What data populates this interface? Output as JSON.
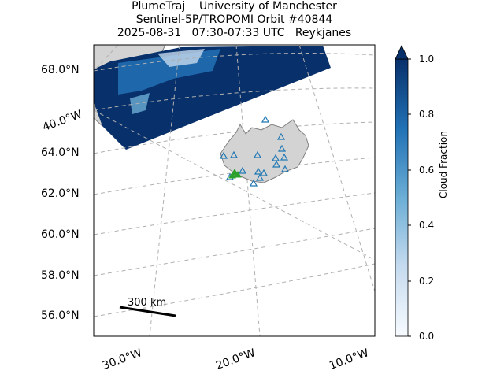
{
  "title": {
    "line1": "PlumeTraj    University of Manchester",
    "line2": "Sentinel-5P/TROPOMI Orbit #40844",
    "line3": "2025-08-31   07:30-07:33 UTC   Reykjanes"
  },
  "map": {
    "lat_labels": [
      "68.0°N",
      "64.0°N",
      "62.0°N",
      "60.0°N",
      "58.0°N",
      "56.0°N"
    ],
    "lon_labels": [
      "40.0°W",
      "30.0°W",
      "20.0°W",
      "10.0°W"
    ],
    "scale_bar_label": "300 km",
    "land_color": "#d3d3d3",
    "coast_color": "#808080",
    "gridline_color": "#b0b0b0",
    "volcano_marker_color": "#1f77b4",
    "vent_marker_color": "#2ca02c"
  },
  "colorbar": {
    "label": "Cloud Fraction",
    "ticks": [
      "1.0",
      "0.8",
      "0.6",
      "0.4",
      "0.2",
      "0.0"
    ],
    "colormap": "Blues",
    "range": [
      0.0,
      1.0
    ]
  }
}
